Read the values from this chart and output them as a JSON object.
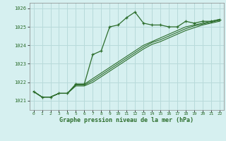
{
  "title": "Graphe pression niveau de la mer (hPa)",
  "bg_color": "#d6f0f0",
  "grid_color": "#b8dada",
  "line_color": "#2d6e2d",
  "x_ticks": [
    0,
    1,
    2,
    3,
    4,
    5,
    6,
    7,
    8,
    9,
    10,
    11,
    12,
    13,
    14,
    15,
    16,
    17,
    18,
    19,
    20,
    21,
    22
  ],
  "ylim": [
    1020.5,
    1026.3
  ],
  "yticks": [
    1021,
    1022,
    1023,
    1024,
    1025,
    1026
  ],
  "series1": [
    1021.5,
    1021.2,
    1021.2,
    1021.4,
    1021.4,
    1021.9,
    1021.9,
    1023.5,
    1023.7,
    1025.0,
    1025.1,
    1025.5,
    1025.8,
    1025.2,
    1025.1,
    1025.1,
    1025.0,
    1025.0,
    1025.3,
    1025.2,
    1025.3,
    1025.3,
    1025.4
  ],
  "series2": [
    1021.5,
    1021.2,
    1021.2,
    1021.4,
    1021.4,
    1021.9,
    1021.9,
    1022.2,
    1022.5,
    1022.8,
    1023.1,
    1023.4,
    1023.7,
    1024.0,
    1024.2,
    1024.4,
    1024.6,
    1024.8,
    1025.0,
    1025.1,
    1025.2,
    1025.3,
    1025.4
  ],
  "series3": [
    1021.5,
    1021.2,
    1021.2,
    1021.4,
    1021.4,
    1021.85,
    1021.85,
    1022.1,
    1022.4,
    1022.7,
    1023.0,
    1023.3,
    1023.6,
    1023.9,
    1024.15,
    1024.3,
    1024.5,
    1024.7,
    1024.9,
    1025.05,
    1025.15,
    1025.25,
    1025.35
  ],
  "series4": [
    1021.5,
    1021.2,
    1021.2,
    1021.4,
    1021.4,
    1021.8,
    1021.8,
    1022.0,
    1022.3,
    1022.6,
    1022.9,
    1023.2,
    1023.5,
    1023.8,
    1024.05,
    1024.2,
    1024.4,
    1024.6,
    1024.8,
    1024.95,
    1025.1,
    1025.2,
    1025.3
  ]
}
